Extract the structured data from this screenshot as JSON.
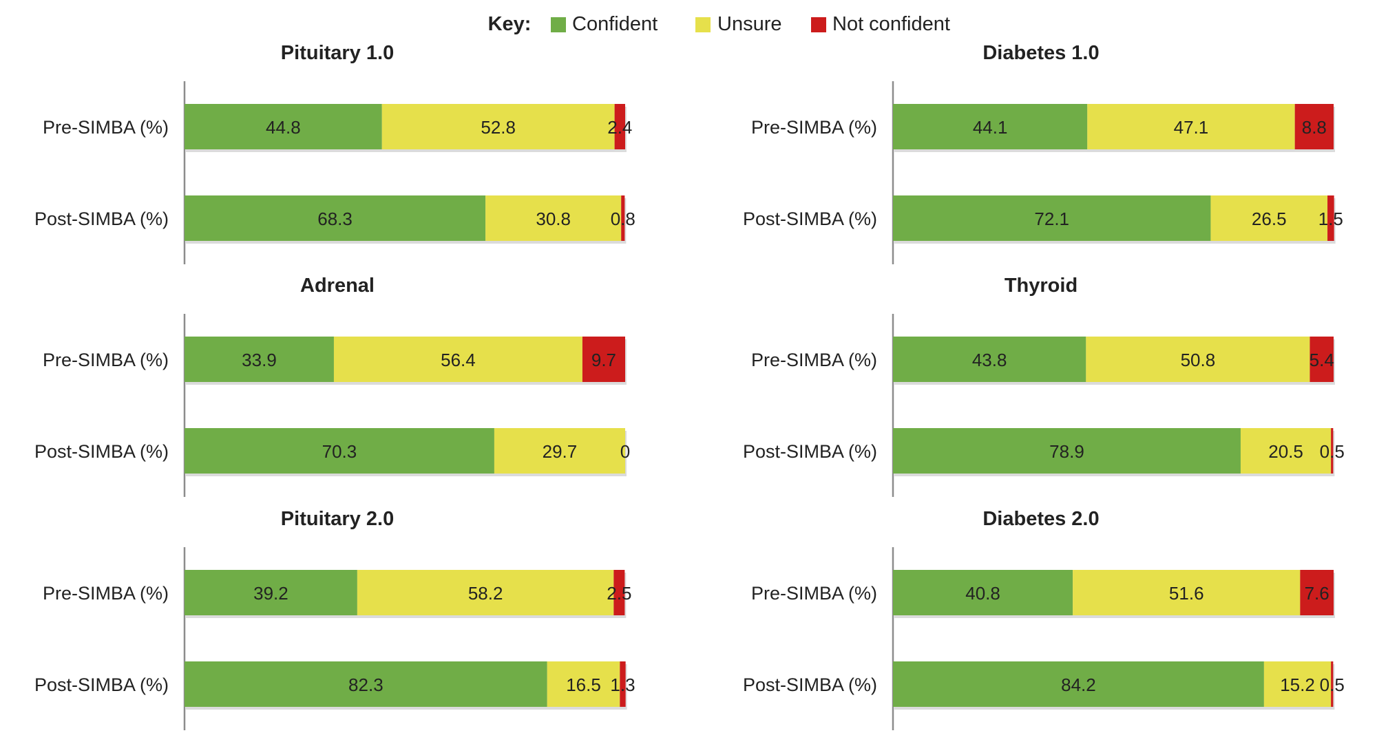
{
  "legend": {
    "title": "Key:",
    "items": [
      {
        "label": "Confident",
        "color": "#70AD47"
      },
      {
        "label": "Unsure",
        "color": "#E6E04B"
      },
      {
        "label": "Not confident",
        "color": "#CC1C1C"
      }
    ]
  },
  "chart_data": [
    {
      "type": "bar",
      "stacked": true,
      "orientation": "horizontal",
      "title": "Pituitary 1.0",
      "categories": [
        "Pre-SIMBA (%)",
        "Post-SIMBA (%)"
      ],
      "series": [
        {
          "name": "Confident",
          "values": [
            44.8,
            68.3
          ]
        },
        {
          "name": "Unsure",
          "values": [
            52.8,
            30.8
          ]
        },
        {
          "name": "Not confident",
          "values": [
            2.4,
            0.8
          ]
        }
      ],
      "xlim": [
        0,
        100
      ]
    },
    {
      "type": "bar",
      "stacked": true,
      "orientation": "horizontal",
      "title": "Diabetes 1.0",
      "categories": [
        "Pre-SIMBA (%)",
        "Post-SIMBA (%)"
      ],
      "series": [
        {
          "name": "Confident",
          "values": [
            44.1,
            72.1
          ]
        },
        {
          "name": "Unsure",
          "values": [
            47.1,
            26.5
          ]
        },
        {
          "name": "Not confident",
          "values": [
            8.8,
            1.5
          ]
        }
      ],
      "xlim": [
        0,
        100
      ]
    },
    {
      "type": "bar",
      "stacked": true,
      "orientation": "horizontal",
      "title": "Adrenal",
      "categories": [
        "Pre-SIMBA (%)",
        "Post-SIMBA (%)"
      ],
      "series": [
        {
          "name": "Confident",
          "values": [
            33.9,
            70.3
          ]
        },
        {
          "name": "Unsure",
          "values": [
            56.4,
            29.7
          ]
        },
        {
          "name": "Not confident",
          "values": [
            9.7,
            0
          ]
        }
      ],
      "xlim": [
        0,
        100
      ]
    },
    {
      "type": "bar",
      "stacked": true,
      "orientation": "horizontal",
      "title": "Thyroid",
      "categories": [
        "Pre-SIMBA (%)",
        "Post-SIMBA (%)"
      ],
      "series": [
        {
          "name": "Confident",
          "values": [
            43.8,
            78.9
          ]
        },
        {
          "name": "Unsure",
          "values": [
            50.8,
            20.5
          ]
        },
        {
          "name": "Not confident",
          "values": [
            5.4,
            0.5
          ]
        }
      ],
      "xlim": [
        0,
        100
      ]
    },
    {
      "type": "bar",
      "stacked": true,
      "orientation": "horizontal",
      "title": "Pituitary 2.0",
      "categories": [
        "Pre-SIMBA (%)",
        "Post-SIMBA (%)"
      ],
      "series": [
        {
          "name": "Confident",
          "values": [
            39.2,
            82.3
          ]
        },
        {
          "name": "Unsure",
          "values": [
            58.2,
            16.5
          ]
        },
        {
          "name": "Not confident",
          "values": [
            2.5,
            1.3
          ]
        }
      ],
      "xlim": [
        0,
        100
      ]
    },
    {
      "type": "bar",
      "stacked": true,
      "orientation": "horizontal",
      "title": "Diabetes 2.0",
      "categories": [
        "Pre-SIMBA (%)",
        "Post-SIMBA (%)"
      ],
      "series": [
        {
          "name": "Confident",
          "values": [
            40.8,
            84.2
          ]
        },
        {
          "name": "Unsure",
          "values": [
            51.6,
            15.2
          ]
        },
        {
          "name": "Not confident",
          "values": [
            7.6,
            0.5
          ]
        }
      ],
      "xlim": [
        0,
        100
      ]
    }
  ]
}
